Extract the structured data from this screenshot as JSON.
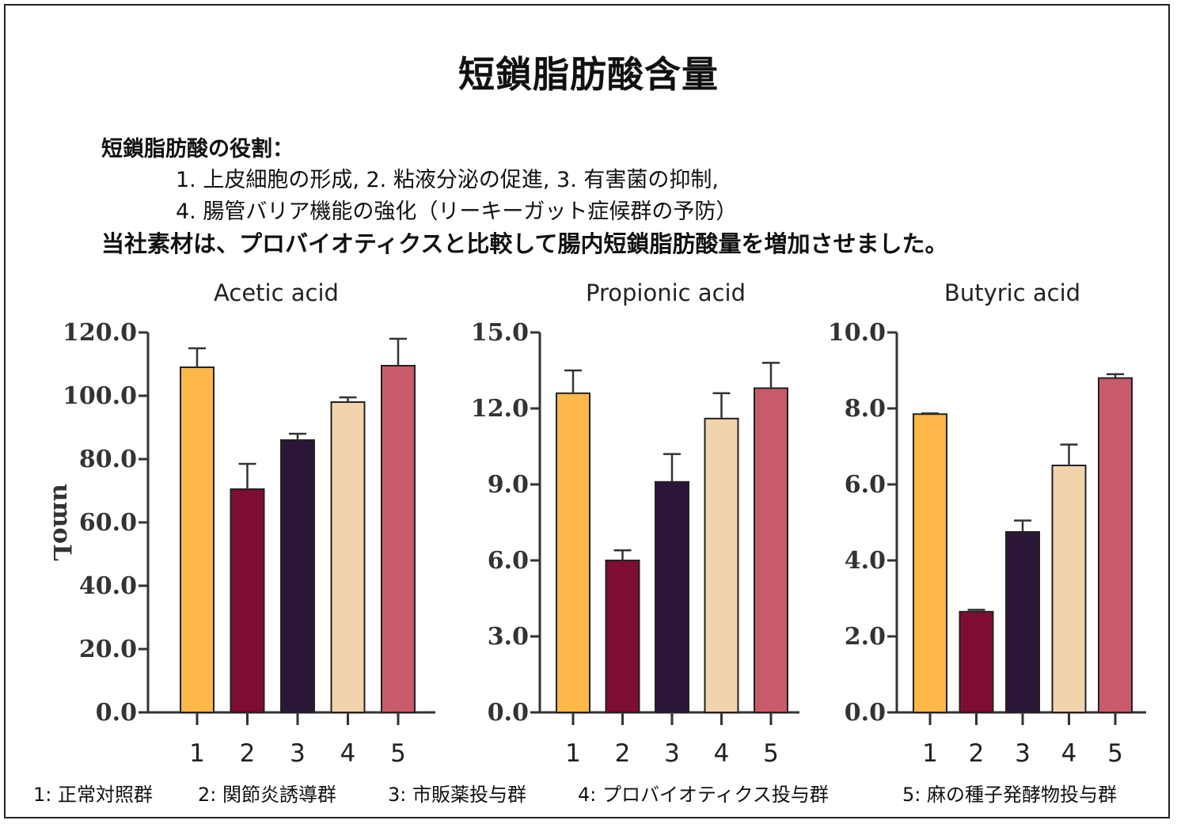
{
  "header": {
    "title": "短鎖脂肪酸含量",
    "roles_heading": "短鎖脂肪酸の役割：",
    "roles_line1": "1. 上皮細胞の形成, 2. 粘液分泌の促進, 3. 有害菌の抑制,",
    "roles_line2": "4. 腸管バリア機能の強化（リーキーガット症候群の予防）",
    "claim": "当社素材は、プロバイオティクスと比較して腸内短鎖脂肪酸量を増加させました。"
  },
  "legend": [
    {
      "label": "1: 正常対照群"
    },
    {
      "label": "2: 関節炎誘導群"
    },
    {
      "label": "3: 市販薬投与群"
    },
    {
      "label": "4: プロバイオティクス投与群"
    },
    {
      "label": "5: 麻の種子発酵物投与群"
    }
  ],
  "colors": [
    "#FDB849",
    "#7E0D35",
    "#2C1638",
    "#F1D3AD",
    "#C85A6A"
  ],
  "chart_data": [
    {
      "type": "bar",
      "title": "Acetic acid",
      "ylabel": "umoL",
      "categories": [
        "1",
        "2",
        "3",
        "4",
        "5"
      ],
      "values": [
        109,
        70.5,
        86,
        98,
        109.5
      ],
      "errors": [
        6,
        8,
        2,
        1.5,
        8.5
      ],
      "ylim": [
        0,
        120
      ],
      "yticks": [
        0,
        20,
        40,
        60,
        80,
        100,
        120
      ],
      "ytick_labels": [
        "0.0",
        "20.0",
        "40.0",
        "60.0",
        "80.0",
        "100.0",
        "120.0"
      ]
    },
    {
      "type": "bar",
      "title": "Propionic acid",
      "ylabel": "",
      "categories": [
        "1",
        "2",
        "3",
        "4",
        "5"
      ],
      "values": [
        12.6,
        6.0,
        9.1,
        11.6,
        12.8
      ],
      "errors": [
        0.9,
        0.4,
        1.1,
        1.0,
        1.0
      ],
      "ylim": [
        0,
        15
      ],
      "yticks": [
        0,
        3,
        6,
        9,
        12,
        15
      ],
      "ytick_labels": [
        "0.0",
        "3.0",
        "6.0",
        "9.0",
        "12.0",
        "15.0"
      ]
    },
    {
      "type": "bar",
      "title": "Butyric acid",
      "ylabel": "",
      "categories": [
        "1",
        "2",
        "3",
        "4",
        "5"
      ],
      "values": [
        7.85,
        2.65,
        4.75,
        6.5,
        8.8
      ],
      "errors": [
        0.02,
        0.05,
        0.3,
        0.55,
        0.1
      ],
      "ylim": [
        0,
        10
      ],
      "yticks": [
        0,
        2,
        4,
        6,
        8,
        10
      ],
      "ytick_labels": [
        "0.0",
        "2.0",
        "4.0",
        "6.0",
        "8.0",
        "10.0"
      ]
    }
  ]
}
